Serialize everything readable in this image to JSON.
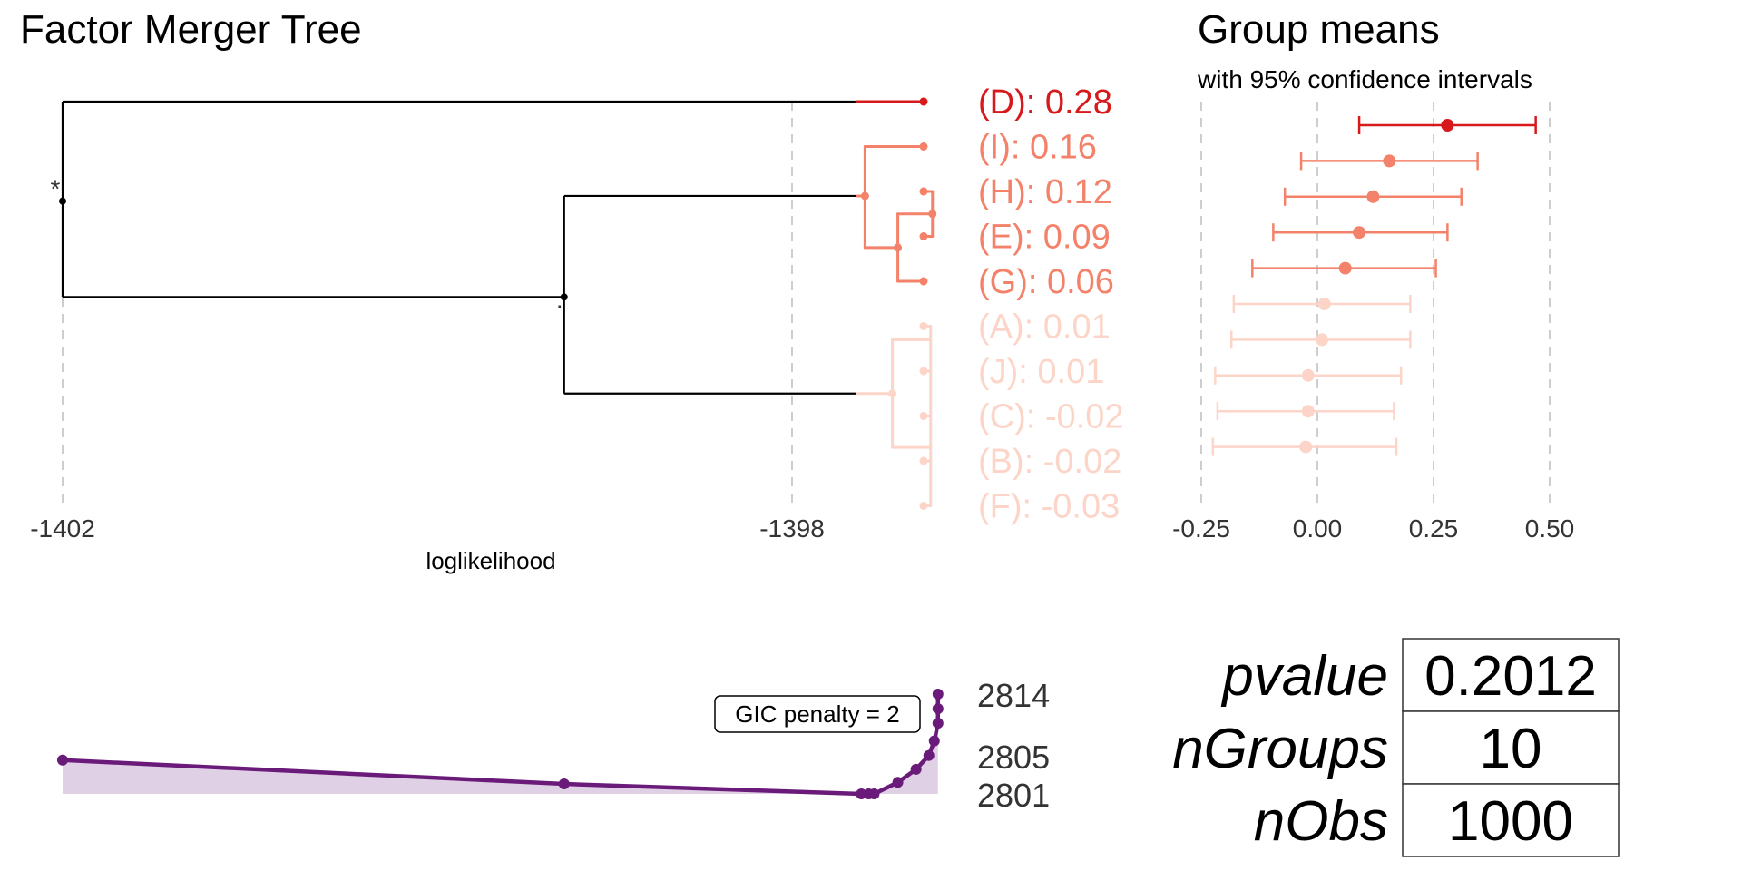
{
  "colors": {
    "top": "#d7191c",
    "mid": "#f4826a",
    "low": "#fcd5c8",
    "gic": "#6a1b7a",
    "gic_fill": "#e0d0e6",
    "tree": "#000000",
    "grid": "#c8c8c8"
  },
  "chart_data": [
    {
      "type": "dendrogram",
      "title": "Factor Merger Tree",
      "xlabel": "loglikelihood",
      "x_ticks": [
        "-1402",
        "-1398"
      ],
      "x_tick_values": [
        -1402,
        -1398
      ],
      "xlim": [
        -1402,
        -1397.2
      ],
      "grid": "vertical dashed at ticks",
      "root_marker": "*",
      "split_marker": ".",
      "leaves": [
        {
          "label": "(D): 0.28",
          "group": "top"
        },
        {
          "label": "(I): 0.16",
          "group": "mid"
        },
        {
          "label": "(H): 0.12",
          "group": "mid"
        },
        {
          "label": "(E): 0.09",
          "group": "mid"
        },
        {
          "label": "(G): 0.06",
          "group": "mid"
        },
        {
          "label": "(A): 0.01",
          "group": "low"
        },
        {
          "label": "(J): 0.01",
          "group": "low"
        },
        {
          "label": "(C): -0.02",
          "group": "low"
        },
        {
          "label": "(B): -0.02",
          "group": "low"
        },
        {
          "label": "(F): -0.03",
          "group": "low"
        }
      ],
      "merges": {
        "root": -1402,
        "top_vs_rest": -1402,
        "mid_vs_low": -1399.25,
        "mid_cluster": -1397.6,
        "mid_inner": -1397.42,
        "mid_hE": -1397.23,
        "low_cluster": -1397.45,
        "low_inner": -1397.24
      }
    },
    {
      "type": "scatter",
      "title": "Group means",
      "subtitle": "with 95% confidence intervals",
      "x_ticks": [
        "-0.25",
        "0.00",
        "0.25",
        "0.50"
      ],
      "x_tick_values": [
        -0.25,
        0.0,
        0.25,
        0.5
      ],
      "xlim": [
        -0.33,
        0.55
      ],
      "grid": "vertical dashed at ticks",
      "points": [
        {
          "name": "D",
          "mean": 0.28,
          "lower": 0.09,
          "upper": 0.47,
          "group": "top"
        },
        {
          "name": "I",
          "mean": 0.155,
          "lower": -0.035,
          "upper": 0.345,
          "group": "mid"
        },
        {
          "name": "H",
          "mean": 0.12,
          "lower": -0.07,
          "upper": 0.31,
          "group": "mid"
        },
        {
          "name": "E",
          "mean": 0.09,
          "lower": -0.095,
          "upper": 0.28,
          "group": "mid"
        },
        {
          "name": "G",
          "mean": 0.06,
          "lower": -0.14,
          "upper": 0.255,
          "group": "mid"
        },
        {
          "name": "A",
          "mean": 0.015,
          "lower": -0.18,
          "upper": 0.2,
          "group": "low"
        },
        {
          "name": "J",
          "mean": 0.01,
          "lower": -0.185,
          "upper": 0.2,
          "group": "low"
        },
        {
          "name": "C",
          "mean": -0.02,
          "lower": -0.22,
          "upper": 0.18,
          "group": "low"
        },
        {
          "name": "B",
          "mean": -0.02,
          "lower": -0.215,
          "upper": 0.165,
          "group": "low"
        },
        {
          "name": "F",
          "mean": -0.025,
          "lower": -0.225,
          "upper": 0.17,
          "group": "low"
        }
      ]
    },
    {
      "type": "area",
      "y_ticks": [
        "2814",
        "2805",
        "2801"
      ],
      "y_tick_values": [
        2814,
        2805,
        2801
      ],
      "annotation": "GIC penalty = 2",
      "points": [
        {
          "x": -1402,
          "y": 2805.4
        },
        {
          "x": -1399.25,
          "y": 2802.3
        },
        {
          "x": -1397.62,
          "y": 2801
        },
        {
          "x": -1397.58,
          "y": 2801
        },
        {
          "x": -1397.55,
          "y": 2801
        },
        {
          "x": -1397.42,
          "y": 2802.5
        },
        {
          "x": -1397.32,
          "y": 2804.2
        },
        {
          "x": -1397.25,
          "y": 2806
        },
        {
          "x": -1397.22,
          "y": 2807.9
        },
        {
          "x": -1397.2,
          "y": 2810.2
        },
        {
          "x": -1397.2,
          "y": 2812.1
        },
        {
          "x": -1397.2,
          "y": 2814
        }
      ]
    },
    {
      "type": "table",
      "rows": [
        {
          "name": "pvalue",
          "value": "0.2012"
        },
        {
          "name": "nGroups",
          "value": "10"
        },
        {
          "name": "nObs",
          "value": "1000"
        }
      ]
    }
  ]
}
